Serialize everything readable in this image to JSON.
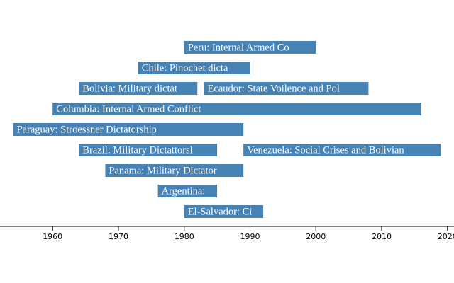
{
  "chart_data": {
    "type": "timeline",
    "color": "#4682b4",
    "xlim": [
      1952,
      2021
    ],
    "xticks": [
      1960,
      1970,
      1980,
      1990,
      2000,
      2010,
      2020
    ],
    "rows": [
      [
        {
          "label": "Peru: Internal Armed Co",
          "start": 1980,
          "end": 2000
        }
      ],
      [
        {
          "label": "Chile: Pinochet dicta",
          "start": 1973,
          "end": 1990
        }
      ],
      [
        {
          "label": "Bolivia: Military dictat",
          "start": 1964,
          "end": 1982
        },
        {
          "label": "Ecaudor: State Voilence and Pol",
          "start": 1983,
          "end": 2008
        }
      ],
      [
        {
          "label": "Columbia: Internal Armed Conflict",
          "start": 1960,
          "end": 2016
        }
      ],
      [
        {
          "label": "Paraguay: Stroessner Dictatorship",
          "start": 1954,
          "end": 1989
        }
      ],
      [
        {
          "label": "Brazil: Military Dictattorsl",
          "start": 1964,
          "end": 1985
        },
        {
          "label": "Venezuela: Social Crises and Bolivian",
          "start": 1989,
          "end": 2019
        }
      ],
      [
        {
          "label": "Panama: Military Dictator",
          "start": 1968,
          "end": 1989
        }
      ],
      [
        {
          "label": "Argentina:",
          "start": 1976,
          "end": 1985
        }
      ],
      [
        {
          "label": "El-Salvador: Ci",
          "start": 1980,
          "end": 1992
        }
      ]
    ]
  }
}
